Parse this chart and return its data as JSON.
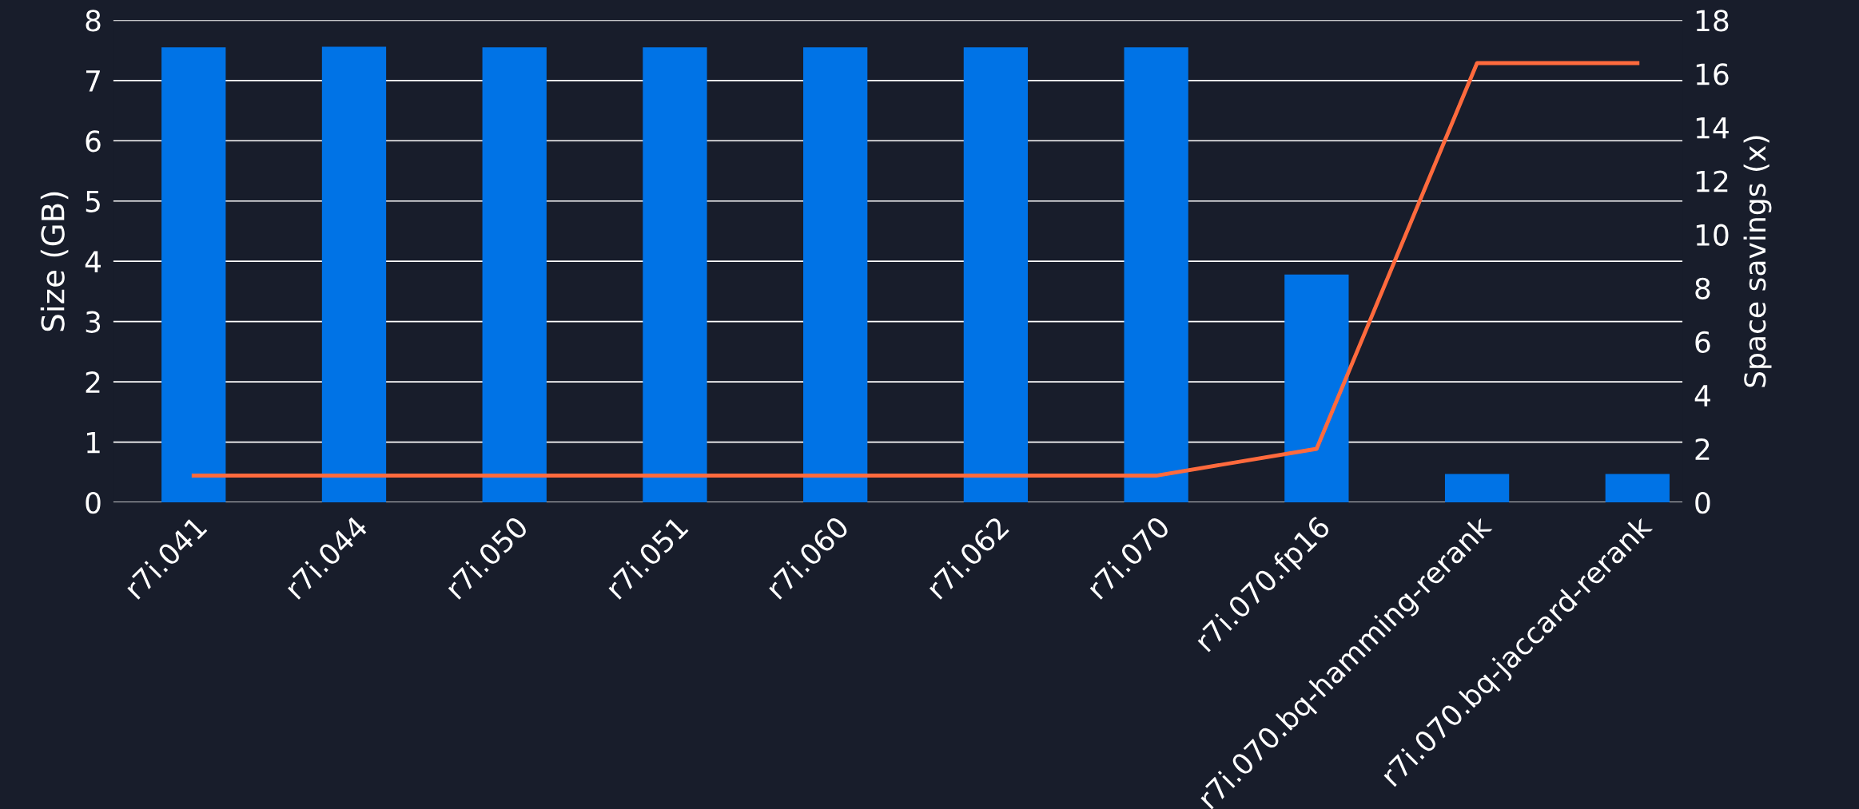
{
  "chart_data": {
    "type": "bar",
    "ylabel": "Size (GB)",
    "y2label": "Space savings (x)",
    "categories": [
      "r7i.041",
      "r7i.044",
      "r7i.050",
      "r7i.051",
      "r7i.060",
      "r7i.062",
      "r7i.070",
      "r7i.070.fp16",
      "r7i.070.bq-hamming-rerank",
      "r7i.070.bq-jaccard-rerank"
    ],
    "series": [
      {
        "color": "#0073e6",
        "values": [
          7.55,
          7.56,
          7.55,
          7.55,
          7.55,
          7.55,
          7.55,
          3.78,
          0.47,
          0.47
        ]
      },
      {
        "type": "line",
        "axis": "y2",
        "color": "#ff6a3d",
        "values": [
          1,
          1,
          1,
          1,
          1,
          1,
          1,
          2,
          16.4,
          16.4
        ]
      }
    ],
    "ylim": [
      0,
      8
    ],
    "yticks": [
      0,
      1,
      2,
      3,
      4,
      5,
      6,
      7,
      8
    ],
    "y2lim": [
      0,
      18
    ],
    "y2ticks": [
      0,
      2,
      4,
      6,
      8,
      10,
      12,
      14,
      16,
      18
    ],
    "grid": "y",
    "legend": false,
    "marker": "none",
    "line_style": "solid"
  }
}
